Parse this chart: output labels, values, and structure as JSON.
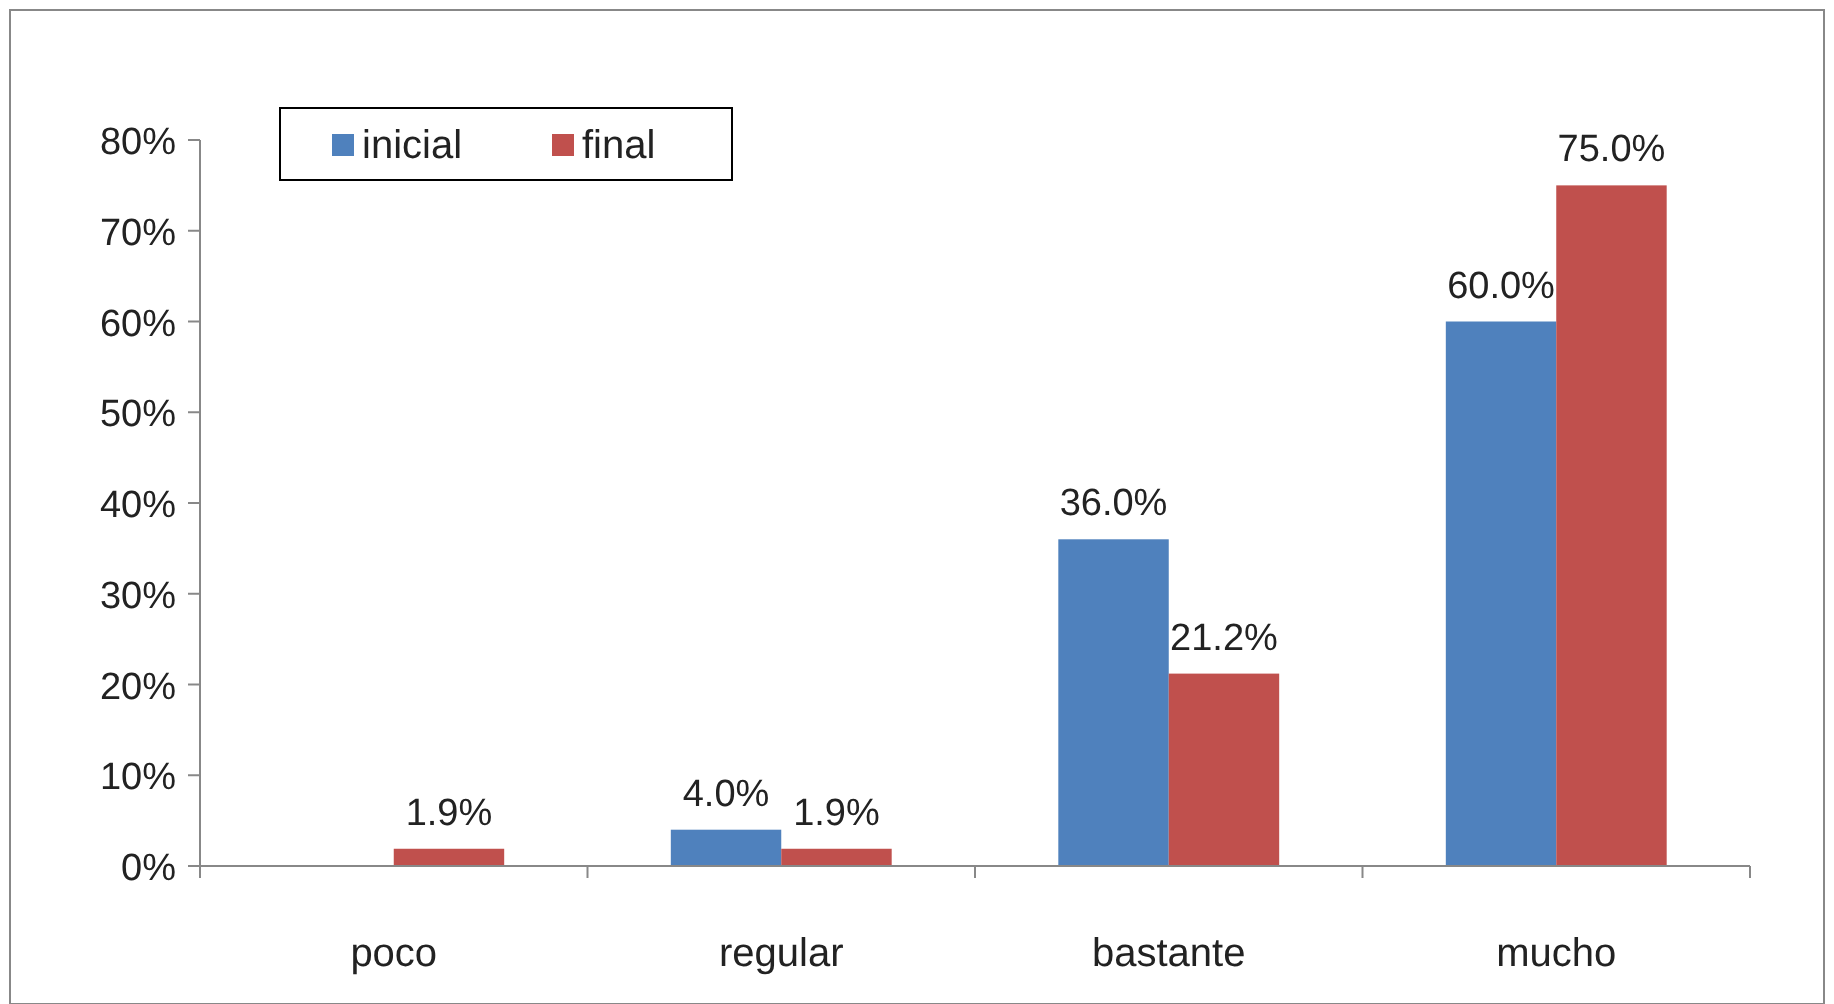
{
  "chart_data": {
    "type": "bar",
    "categories": [
      "poco",
      "regular",
      "bastante",
      "mucho"
    ],
    "series": [
      {
        "name": "inicial",
        "color": "#4f81bd",
        "values": [
          0,
          4,
          36,
          60
        ],
        "value_labels": [
          null,
          "4.0%",
          "36.0%",
          "60.0%"
        ]
      },
      {
        "name": "final",
        "color": "#c0504d",
        "values": [
          1.9,
          1.9,
          21.2,
          75
        ],
        "value_labels": [
          "1.9%",
          "1.9%",
          "21.2%",
          "75.0%"
        ]
      }
    ],
    "ylim": [
      0,
      80
    ],
    "yticks": [
      {
        "value": 0,
        "label": "0%"
      },
      {
        "value": 10,
        "label": "10%"
      },
      {
        "value": 20,
        "label": "20%"
      },
      {
        "value": 30,
        "label": "30%"
      },
      {
        "value": 40,
        "label": "40%"
      },
      {
        "value": 50,
        "label": "50%"
      },
      {
        "value": 60,
        "label": "60%"
      },
      {
        "value": 70,
        "label": "70%"
      },
      {
        "value": 80,
        "label": "80%"
      }
    ],
    "grid": false,
    "legend": "top left"
  }
}
